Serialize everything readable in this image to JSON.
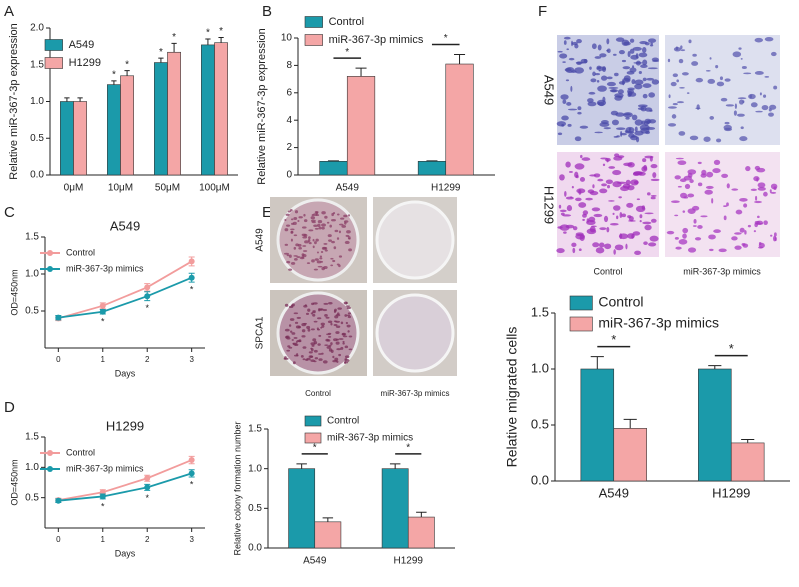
{
  "panel_labels": [
    "A",
    "B",
    "C",
    "D",
    "E",
    "F"
  ],
  "colony_images": {
    "rows": [
      "A549",
      "SPCA1"
    ],
    "columns": [
      "Control",
      "miR-367-3p mimics"
    ]
  },
  "transwell_images": {
    "rows": [
      "A549",
      "H1299"
    ],
    "columns": [
      "Control",
      "miR-367-3p mimics"
    ]
  },
  "chart_data": [
    {
      "type": "bar",
      "ylabel": "Relative miR-367-3p expression",
      "categories": [
        "0μM",
        "10μM",
        "50μM",
        "100μM"
      ],
      "series": [
        {
          "name": "A549",
          "color": "#1b9aaa",
          "values": [
            1.0,
            1.23,
            1.53,
            1.77
          ],
          "errors": [
            0.05,
            0.05,
            0.06,
            0.08
          ],
          "significance": [
            null,
            "*",
            "*",
            "*"
          ]
        },
        {
          "name": "H1299",
          "color": "#f4a6a6",
          "values": [
            1.0,
            1.35,
            1.67,
            1.8
          ],
          "errors": [
            0.05,
            0.07,
            0.12,
            0.07
          ],
          "significance": [
            null,
            "*",
            "*",
            "*"
          ]
        }
      ],
      "ylim": [
        0,
        2.0
      ],
      "yticks": [
        {
          "value": 0,
          "label": "0.0"
        },
        0.5,
        {
          "value": 1.0,
          "label": "1.0"
        },
        1.5,
        {
          "value": 2.0,
          "label": "2.0"
        }
      ]
    },
    {
      "type": "bar",
      "ylabel": "Relative miR-367-3p expression",
      "categories": [
        "A549",
        "H1299"
      ],
      "series": [
        {
          "name": "Control",
          "color": "#1b9aaa",
          "values": [
            1.0,
            1.0
          ],
          "errors": [
            0.03,
            0.03
          ]
        },
        {
          "name": "miR-367-3p mimics",
          "color": "#f4a6a6",
          "values": [
            7.2,
            8.1
          ],
          "errors": [
            0.6,
            0.7
          ]
        }
      ],
      "significance": [
        "*",
        "*"
      ],
      "ylim": [
        0,
        10
      ],
      "yticks": [
        0,
        2,
        4,
        6,
        8,
        10
      ]
    },
    {
      "type": "line",
      "title": "A549",
      "xlabel": "Days",
      "ylabel": "OD=450nm",
      "x": [
        0,
        1,
        2,
        3
      ],
      "series": [
        {
          "name": "Control",
          "color": "#f29c9c",
          "values": [
            0.4,
            0.57,
            0.82,
            1.17
          ],
          "errors": [
            0.03,
            0.04,
            0.05,
            0.06
          ]
        },
        {
          "name": "miR-367-3p mimics",
          "color": "#1b9aaa",
          "values": [
            0.41,
            0.49,
            0.7,
            0.95
          ],
          "errors": [
            0.03,
            0.03,
            0.06,
            0.06
          ],
          "significance": [
            null,
            "*",
            "*",
            "*"
          ]
        }
      ],
      "xlim": [
        -0.3,
        3.3
      ],
      "xticks": [
        0,
        1,
        2,
        3
      ],
      "ylim": [
        0,
        1.5
      ],
      "yticks": [
        0.5,
        {
          "value": 1.0,
          "label": "1.0"
        },
        1.5
      ]
    },
    {
      "type": "line",
      "title": "H1299",
      "xlabel": "Days",
      "ylabel": "OD=450nm",
      "x": [
        0,
        1,
        2,
        3
      ],
      "series": [
        {
          "name": "Control",
          "color": "#f29c9c",
          "values": [
            0.46,
            0.59,
            0.82,
            1.12
          ],
          "errors": [
            0.03,
            0.04,
            0.05,
            0.06
          ]
        },
        {
          "name": "miR-367-3p mimics",
          "color": "#1b9aaa",
          "values": [
            0.45,
            0.52,
            0.67,
            0.9
          ],
          "errors": [
            0.03,
            0.04,
            0.05,
            0.06
          ],
          "significance": [
            null,
            "*",
            "*",
            "*"
          ]
        }
      ],
      "xlim": [
        -0.3,
        3.3
      ],
      "xticks": [
        0,
        1,
        2,
        3
      ],
      "ylim": [
        0,
        1.5
      ],
      "yticks": [
        0.5,
        {
          "value": 1.0,
          "label": "1.0"
        },
        1.5
      ]
    },
    {
      "type": "bar",
      "ylabel": "Relative colony formation number",
      "categories": [
        "A549",
        "H1299"
      ],
      "series": [
        {
          "name": "Control",
          "color": "#1b9aaa",
          "values": [
            1.0,
            1.0
          ],
          "errors": [
            0.06,
            0.06
          ]
        },
        {
          "name": "miR-367-3p mimics",
          "color": "#f4a6a6",
          "values": [
            0.33,
            0.39
          ],
          "errors": [
            0.05,
            0.06
          ]
        }
      ],
      "significance": [
        "*",
        "*"
      ],
      "ylim": [
        0,
        1.5
      ],
      "yticks": [
        {
          "value": 0,
          "label": "0.0"
        },
        0.5,
        {
          "value": 1.0,
          "label": "1.0"
        },
        1.5
      ]
    },
    {
      "type": "bar",
      "ylabel": "Relative migrated cells",
      "categories": [
        "A549",
        "H1299"
      ],
      "series": [
        {
          "name": "Control",
          "color": "#1b9aaa",
          "values": [
            1.0,
            1.0
          ],
          "errors": [
            0.11,
            0.03
          ]
        },
        {
          "name": "miR-367-3p mimics",
          "color": "#f4a6a6",
          "values": [
            0.47,
            0.34
          ],
          "errors": [
            0.08,
            0.03
          ]
        }
      ],
      "significance": [
        "*",
        "*"
      ],
      "ylim": [
        0,
        1.5
      ],
      "yticks": [
        {
          "value": 0,
          "label": "0.0"
        },
        0.5,
        {
          "value": 1.0,
          "label": "1.0"
        },
        1.5
      ]
    }
  ]
}
